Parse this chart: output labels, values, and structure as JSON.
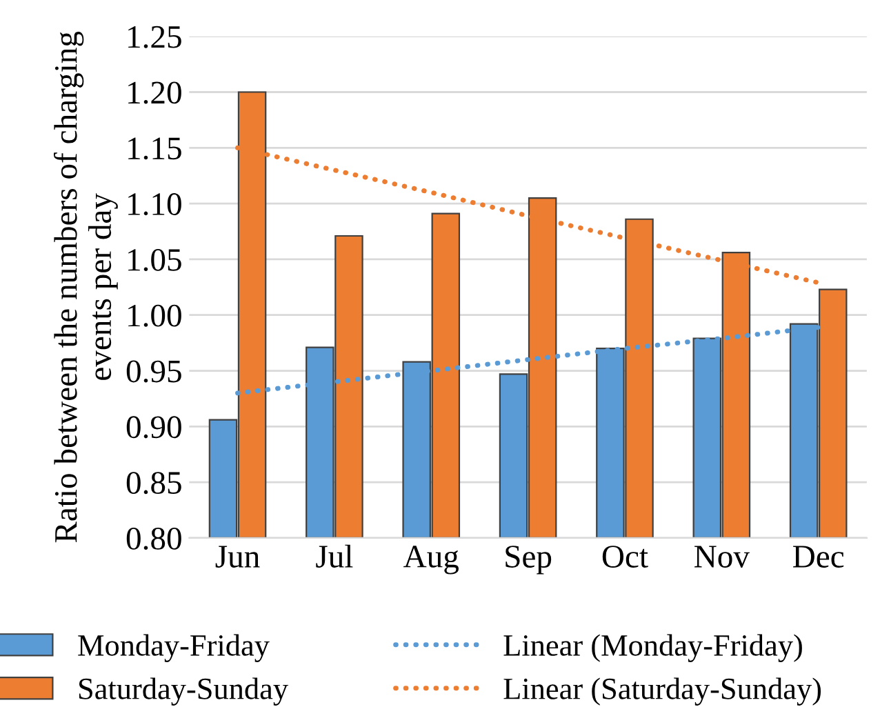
{
  "chart_data": {
    "type": "bar",
    "ylabel": "Ratio between the numbers of charging events per day",
    "categories": [
      "Jun",
      "Jul",
      "Aug",
      "Sep",
      "Oct",
      "Nov",
      "Dec"
    ],
    "series": [
      {
        "name": "Monday-Friday",
        "color": "#5b9bd5",
        "values": [
          0.906,
          0.971,
          0.958,
          0.947,
          0.97,
          0.979,
          0.992
        ]
      },
      {
        "name": "Saturday-Sunday",
        "color": "#ed7d31",
        "values": [
          1.2,
          1.071,
          1.091,
          1.105,
          1.086,
          1.056,
          1.023
        ]
      },
      {
        "name": "Linear (Monday-Friday)",
        "type": "line",
        "line_style": "dotted",
        "color": "#5b9bd5",
        "values": [
          0.93,
          0.94,
          0.95,
          0.96,
          0.97,
          0.979,
          0.989
        ]
      },
      {
        "name": "Linear (Saturday-Sunday)",
        "type": "line",
        "line_style": "dotted",
        "color": "#ed7d31",
        "values": [
          1.15,
          1.13,
          1.11,
          1.089,
          1.069,
          1.049,
          1.029
        ]
      }
    ],
    "ylim": [
      0.8,
      1.25
    ],
    "yticks": [
      {
        "value": 0.8,
        "label": "0.80"
      },
      {
        "value": 0.85,
        "label": "0.85"
      },
      {
        "value": 0.9,
        "label": "0.90"
      },
      {
        "value": 0.95,
        "label": "0.95"
      },
      {
        "value": 1.0,
        "label": "1.00"
      },
      {
        "value": 1.05,
        "label": "1.05"
      },
      {
        "value": 1.1,
        "label": "1.10"
      },
      {
        "value": 1.15,
        "label": "1.15"
      },
      {
        "value": 1.2,
        "label": "1.20"
      },
      {
        "value": 1.25,
        "label": "1.25"
      }
    ],
    "grid": "y",
    "legend": "bottom"
  }
}
